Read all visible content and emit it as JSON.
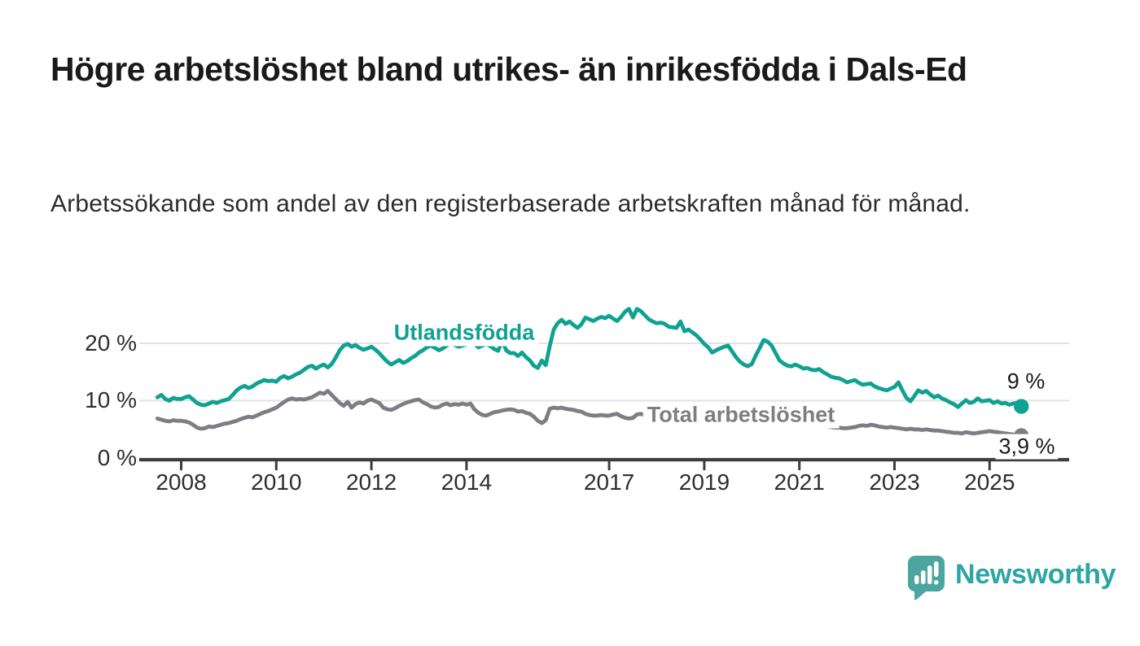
{
  "title": "Högre arbetslöshet bland utrikes- än inrikesfödda i Dals-Ed",
  "subtitle": "Arbetssökande som andel av den registerbaserade arbetskraften månad för månad.",
  "branding": {
    "name": "Newsworthy",
    "icon": "bar-chart-speech-bubble-icon",
    "bubble_color": "#4da5a0",
    "text_color": "#2da4a6"
  },
  "colors": {
    "foreign_born_line": "#0fa192",
    "total_line": "#7d7d85",
    "gridline": "#e2e2e2",
    "axis": "#3d3d3d",
    "label_text": "#1b1b1b"
  },
  "chart_data": {
    "type": "line",
    "title": "Högre arbetslöshet bland utrikes- än inrikesfödda i Dals-Ed",
    "subtitle": "Arbetssökande som andel av den registerbaserade arbetskraften månad för månad.",
    "unit": "percent",
    "frequency": "monthly",
    "start": "2007-07",
    "end": "2025-09",
    "grid": "horizontal",
    "ylim": [
      0,
      27
    ],
    "y_ticks": [
      {
        "value": 0,
        "label": "0 %"
      },
      {
        "value": 10,
        "label": "10 %"
      },
      {
        "value": 20,
        "label": "20 %"
      }
    ],
    "x_tick_years": [
      2008,
      2010,
      2012,
      2014,
      2017,
      2019,
      2021,
      2023,
      2025
    ],
    "series": [
      {
        "name": "Utlandsfödda",
        "color": "#0fa192",
        "end_label": "9 %",
        "end_value": 9.0,
        "values": [
          10.6,
          11.0,
          10.3,
          10.0,
          10.5,
          10.3,
          10.3,
          10.6,
          10.8,
          10.2,
          9.6,
          9.3,
          9.2,
          9.5,
          9.8,
          9.6,
          9.9,
          10.1,
          10.3,
          11.0,
          11.8,
          12.3,
          12.6,
          12.2,
          12.5,
          13.0,
          13.3,
          13.6,
          13.4,
          13.5,
          13.3,
          14.0,
          14.3,
          13.9,
          14.2,
          14.6,
          14.9,
          15.4,
          15.9,
          16.1,
          15.6,
          16.0,
          16.3,
          15.8,
          16.4,
          17.5,
          18.8,
          19.6,
          19.9,
          19.4,
          19.7,
          19.2,
          18.9,
          19.1,
          19.4,
          18.9,
          18.3,
          17.5,
          16.8,
          16.3,
          16.7,
          17.1,
          16.6,
          16.9,
          17.4,
          17.8,
          18.4,
          18.8,
          19.3,
          19.6,
          19.2,
          18.8,
          19.1,
          19.6,
          20.0,
          19.7,
          19.4,
          19.6,
          19.8,
          23.2,
          19.9,
          19.3,
          19.6,
          19.9,
          19.5,
          19.0,
          18.7,
          20.5,
          18.8,
          18.3,
          18.3,
          17.8,
          18.4,
          17.6,
          17.0,
          16.1,
          15.7,
          17.0,
          16.2,
          19.5,
          22.4,
          23.5,
          24.1,
          23.4,
          23.8,
          23.2,
          22.7,
          23.3,
          24.5,
          24.2,
          23.9,
          24.3,
          24.6,
          24.4,
          24.8,
          24.3,
          23.9,
          24.6,
          25.5,
          26.0,
          24.5,
          26.0,
          25.6,
          24.9,
          24.2,
          23.8,
          23.5,
          23.6,
          23.4,
          22.9,
          22.8,
          22.7,
          23.8,
          22.1,
          22.4,
          21.9,
          21.4,
          20.7,
          19.9,
          19.3,
          18.4,
          18.8,
          19.1,
          19.4,
          19.6,
          18.6,
          17.6,
          16.8,
          16.3,
          16.0,
          16.4,
          17.9,
          19.2,
          20.6,
          20.3,
          19.6,
          18.3,
          17.0,
          16.5,
          16.1,
          16.0,
          16.3,
          16.0,
          15.6,
          15.7,
          15.4,
          15.3,
          15.5,
          15.0,
          14.6,
          14.2,
          14.0,
          13.9,
          13.6,
          13.2,
          13.4,
          13.6,
          13.1,
          12.8,
          12.9,
          13.0,
          12.5,
          12.2,
          12.0,
          11.8,
          12.1,
          12.4,
          13.2,
          11.8,
          10.5,
          9.9,
          10.8,
          11.8,
          11.4,
          11.7,
          11.1,
          10.6,
          10.9,
          10.4,
          10.1,
          9.7,
          9.4,
          8.9,
          9.5,
          10.1,
          9.6,
          9.8,
          10.4,
          9.9,
          10.0,
          10.1,
          9.6,
          9.9,
          9.5,
          9.6,
          9.3,
          9.5,
          9.6,
          9.0
        ]
      },
      {
        "name": "Total arbetslöshet",
        "color": "#7d7d85",
        "end_label": "3,9 %",
        "end_value": 3.9,
        "values": [
          6.9,
          6.7,
          6.5,
          6.4,
          6.6,
          6.5,
          6.5,
          6.4,
          6.2,
          5.8,
          5.3,
          5.1,
          5.2,
          5.5,
          5.4,
          5.6,
          5.8,
          6.0,
          6.1,
          6.3,
          6.5,
          6.8,
          7.0,
          7.2,
          7.1,
          7.4,
          7.7,
          8.0,
          8.2,
          8.5,
          8.8,
          9.3,
          9.8,
          10.2,
          10.4,
          10.2,
          10.3,
          10.2,
          10.4,
          10.6,
          11.0,
          11.4,
          11.2,
          11.7,
          11.0,
          10.3,
          9.6,
          9.1,
          9.8,
          8.8,
          9.4,
          9.7,
          9.5,
          10.0,
          10.2,
          9.9,
          9.6,
          8.8,
          8.5,
          8.4,
          8.7,
          9.1,
          9.4,
          9.7,
          9.9,
          10.1,
          10.2,
          9.7,
          9.4,
          9.0,
          8.8,
          8.9,
          9.3,
          9.5,
          9.2,
          9.4,
          9.3,
          9.5,
          9.3,
          9.5,
          8.5,
          7.9,
          7.5,
          7.4,
          7.7,
          8.0,
          8.1,
          8.3,
          8.4,
          8.5,
          8.4,
          8.1,
          8.2,
          7.9,
          7.7,
          7.2,
          6.5,
          6.1,
          6.6,
          8.6,
          8.8,
          8.7,
          8.8,
          8.6,
          8.5,
          8.4,
          8.2,
          8.1,
          7.7,
          7.5,
          7.4,
          7.4,
          7.5,
          7.4,
          7.4,
          7.6,
          7.7,
          7.3,
          7.0,
          6.9,
          7.0,
          7.6,
          7.7,
          7.5,
          7.4,
          7.3,
          7.2,
          7.1,
          7.0,
          6.9,
          7.0,
          6.8,
          6.7,
          6.8,
          6.6,
          6.5,
          6.4,
          6.3,
          6.2,
          6.3,
          6.1,
          6.0,
          6.1,
          6.2,
          6.3,
          6.1,
          5.9,
          5.8,
          5.9,
          6.0,
          6.1,
          6.4,
          6.9,
          7.4,
          7.6,
          7.5,
          7.3,
          7.1,
          6.9,
          6.7,
          6.5,
          6.4,
          6.3,
          6.2,
          6.1,
          5.9,
          5.8,
          5.7,
          5.6,
          5.5,
          5.4,
          5.3,
          5.3,
          5.2,
          5.2,
          5.3,
          5.4,
          5.6,
          5.7,
          5.6,
          5.8,
          5.7,
          5.5,
          5.4,
          5.3,
          5.4,
          5.3,
          5.2,
          5.1,
          5.0,
          5.1,
          5.0,
          5.0,
          4.9,
          5.0,
          4.9,
          4.8,
          4.8,
          4.7,
          4.6,
          4.5,
          4.4,
          4.4,
          4.3,
          4.5,
          4.4,
          4.3,
          4.4,
          4.5,
          4.6,
          4.7,
          4.6,
          4.5,
          4.4,
          4.3,
          4.2,
          4.1,
          4.0,
          3.9
        ]
      }
    ]
  }
}
